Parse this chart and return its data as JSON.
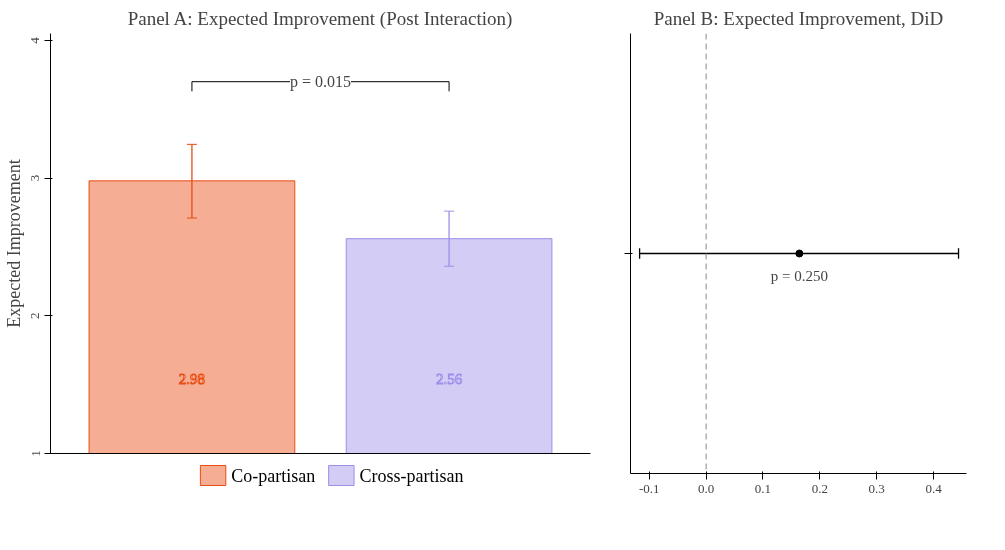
{
  "chart_data": [
    {
      "type": "bar",
      "title": "Panel A: Expected Improvement (Post Interaction)",
      "ylabel": "Expected Improvement",
      "categories": [
        null,
        null
      ],
      "series": [
        {
          "name": "Co-partisan",
          "color": "#f5ae94",
          "values": [
            2.98,
            null
          ],
          "errors": [
            [
              2.71,
              3.245
            ],
            null
          ]
        },
        {
          "name": "Cross-partisan",
          "color": "#d3ccf5",
          "values": [
            null,
            2.56
          ],
          "errors": [
            null,
            [
              2.36,
              2.76
            ]
          ]
        }
      ],
      "ylim": [
        1,
        4.05
      ],
      "yticks": [
        1,
        2,
        3,
        4
      ],
      "data_labels": true,
      "legend": "bottom",
      "tick_labels": "y",
      "grid": false,
      "annotations": [
        "p = 0.015"
      ]
    },
    {
      "type": "scatter",
      "title": "Panel B: Expected Improvement, DiD",
      "orientation": "horizontal",
      "categories": [
        null
      ],
      "values": [
        0.164
      ],
      "errors": [
        [
          -0.117,
          0.444
        ]
      ],
      "color": "#000000",
      "marker": "circle",
      "xlim": [
        -0.133,
        0.458
      ],
      "xticks": [
        {
          "value": -0.1,
          "label": "-0.1"
        },
        {
          "value": 0,
          "label": "0.0"
        },
        {
          "value": 0.1,
          "label": "0.1"
        },
        {
          "value": 0.2,
          "label": "0.2"
        },
        {
          "value": 0.3,
          "label": "0.3"
        },
        {
          "value": 0.4,
          "label": "0.4"
        }
      ],
      "ref_lines": [
        {
          "axis": "x",
          "value": 0,
          "color": "#888888",
          "line_style": "dashed"
        }
      ],
      "tick_labels": "x",
      "grid": false,
      "annotations": [
        "p = 0.250"
      ]
    }
  ]
}
